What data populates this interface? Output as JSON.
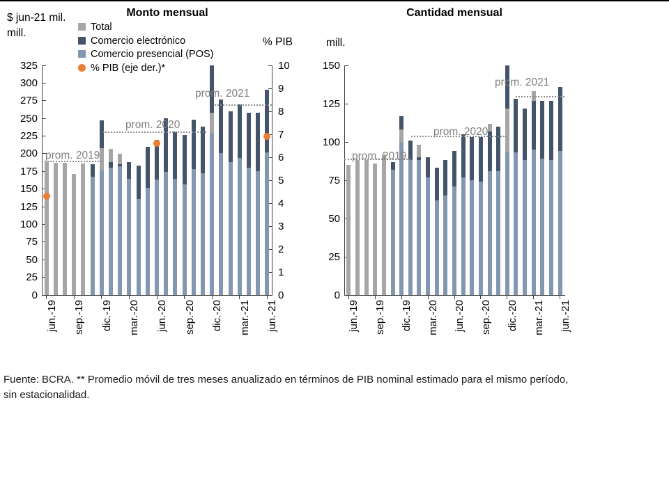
{
  "page": {
    "top_border_color": "#000000",
    "footer": "Fuente: BCRA. ** Promedio móvil de tres meses anualizado en términos de PIB nominal estimado para el mismo período, sin estacionalidad."
  },
  "colors": {
    "total_gray": "#a6a6a6",
    "ecommerce_dark": "#44546a",
    "pos_blue": "#8497b0",
    "pib_orange": "#ed7d31",
    "prom_line": "#8c8c8c",
    "prom_text": "#7f7f7f",
    "axis": "#404040",
    "text": "#000000"
  },
  "legend": {
    "items": [
      {
        "label": "Total",
        "color": "#a6a6a6",
        "shape": "square"
      },
      {
        "label": "Comercio electrónico",
        "color": "#44546a",
        "shape": "square"
      },
      {
        "label": "Comercio presencial (POS)",
        "color": "#8497b0",
        "shape": "square"
      },
      {
        "label": "% PIB (eje der.)*",
        "color": "#ed7d31",
        "shape": "circle"
      }
    ]
  },
  "chart_data": [
    {
      "type": "bar",
      "title": "Monto mensual",
      "y_axis_label": "$ jun-21 mil. mill.",
      "y2_axis_label": "% PIB",
      "ylim": [
        0,
        325
      ],
      "ytick_step": 25,
      "y2lim": [
        0,
        10
      ],
      "y2tick_step": 1,
      "grid": false,
      "months": [
        "jun-19",
        "jul-19",
        "ago-19",
        "sep-19",
        "oct-19",
        "nov-19",
        "dic-19",
        "ene-20",
        "feb-20",
        "mar-20",
        "abr-20",
        "may-20",
        "jun-20",
        "jul-20",
        "ago-20",
        "sep-20",
        "oct-20",
        "nov-20",
        "dic-20",
        "ene-21",
        "feb-21",
        "mar-21",
        "abr-21",
        "may-21",
        "jun-21"
      ],
      "x_tick_labels": [
        "jun.-19",
        "sep.-19",
        "dic.-19",
        "mar.-20",
        "jun.-20",
        "sep.-20",
        "dic.-20",
        "mar.-21",
        "jun.-21"
      ],
      "x_tick_month_indices": [
        0,
        3,
        6,
        9,
        12,
        15,
        18,
        21,
        24
      ],
      "series": {
        "pos": [
          0,
          0,
          0,
          0,
          0,
          167,
          176,
          180,
          182,
          164,
          136,
          152,
          163,
          174,
          164,
          157,
          178,
          172,
          228,
          201,
          188,
          194,
          180,
          175,
          202
        ],
        "ecom": [
          0,
          0,
          0,
          0,
          0,
          18,
          39,
          8,
          3,
          24,
          47,
          58,
          57,
          76,
          67,
          70,
          70,
          66,
          67,
          76,
          72,
          76,
          78,
          83,
          89
        ],
        "gray_mid": [
          0,
          0,
          0,
          0,
          0,
          0,
          32,
          0,
          0,
          0,
          0,
          0,
          0,
          0,
          0,
          0,
          0,
          0,
          30,
          0,
          0,
          0,
          0,
          0,
          0
        ],
        "gray_top": [
          188,
          187,
          187,
          171,
          186,
          0,
          0,
          19,
          15,
          0,
          0,
          0,
          0,
          0,
          0,
          0,
          0,
          0,
          0,
          0,
          0,
          0,
          0,
          0,
          0
        ]
      },
      "pib_points": [
        {
          "month_index": 0,
          "value": 4.3
        },
        {
          "month_index": 12,
          "value": 6.6
        },
        {
          "month_index": 24,
          "value": 6.9
        }
      ],
      "prom_lines": [
        {
          "label": "prom. 2019",
          "value": 188,
          "x0": 0.0,
          "x1": 0.26,
          "label_xy": [
            5,
            121
          ]
        },
        {
          "label": "prom. 2020",
          "value": 229,
          "x0": 0.267,
          "x1": 0.715,
          "label_xy": [
            120,
            77
          ]
        },
        {
          "label": "prom. 2021",
          "value": 268,
          "x0": 0.75,
          "x1": 1.0,
          "label_xy": [
            220,
            32
          ]
        }
      ]
    },
    {
      "type": "bar",
      "title": "Cantidad mensual",
      "y_axis_label": "mill.",
      "ylim": [
        0,
        150
      ],
      "ytick_step": 25,
      "grid": false,
      "months": [
        "jun-19",
        "jul-19",
        "ago-19",
        "sep-19",
        "oct-19",
        "nov-19",
        "dic-19",
        "ene-20",
        "feb-20",
        "mar-20",
        "abr-20",
        "may-20",
        "jun-20",
        "jul-20",
        "ago-20",
        "sep-20",
        "oct-20",
        "nov-20",
        "dic-20",
        "ene-21",
        "feb-21",
        "mar-21",
        "abr-21",
        "may-21",
        "jun-21"
      ],
      "x_tick_labels": [
        "jun.-19",
        "sep.-19",
        "dic.-19",
        "mar.-20",
        "jun.-20",
        "sep.-20",
        "dic.-20",
        "mar.-21",
        "jun.-21"
      ],
      "x_tick_month_indices": [
        0,
        3,
        6,
        9,
        12,
        15,
        18,
        21,
        24
      ],
      "series": {
        "pos": [
          0,
          0,
          0,
          0,
          0,
          82,
          100,
          88,
          88,
          77,
          62,
          65,
          71,
          77,
          75,
          74,
          81,
          81,
          93,
          93,
          88,
          95,
          89,
          88,
          94
        ],
        "ecom": [
          0,
          0,
          0,
          0,
          0,
          5,
          9,
          13,
          2,
          13,
          21,
          23,
          23,
          28,
          28,
          29,
          26,
          29,
          28,
          35,
          34,
          32,
          38,
          39,
          42
        ],
        "gray_mid": [
          0,
          0,
          0,
          0,
          0,
          0,
          8,
          0,
          0,
          0,
          0,
          0,
          0,
          0,
          0,
          0,
          0,
          0,
          29,
          0,
          0,
          0,
          0,
          0,
          0
        ],
        "gray_top": [
          85,
          88,
          88,
          86,
          92,
          0,
          0,
          0,
          8,
          0,
          0,
          0,
          0,
          0,
          0,
          0,
          5,
          0,
          0,
          0,
          0,
          6,
          0,
          0,
          0
        ]
      },
      "pib_points": [],
      "prom_lines": [
        {
          "label": "prom. 2019",
          "value": 88,
          "x0": 0.0,
          "x1": 0.3,
          "label_xy": [
            11,
            122
          ]
        },
        {
          "label": "prom. 2020",
          "value": 103,
          "x0": 0.304,
          "x1": 0.74,
          "label_xy": [
            128,
            87
          ]
        },
        {
          "label": "prom. 2021",
          "value": 129,
          "x0": 0.78,
          "x1": 1.0,
          "label_xy": [
            216,
            16
          ]
        }
      ]
    }
  ]
}
